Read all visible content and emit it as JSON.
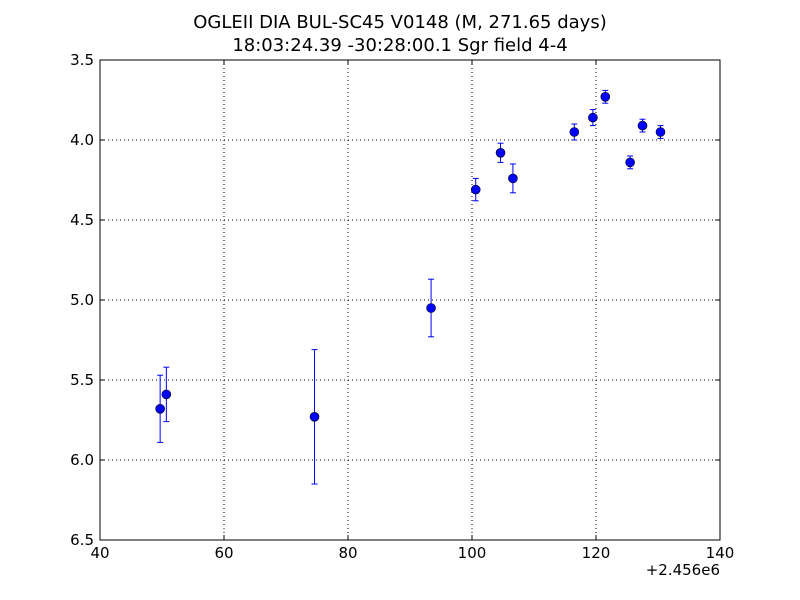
{
  "chart_data": {
    "type": "scatter",
    "title_lines": [
      "OGLEII DIA BUL-SC45 V0148  (M, 271.65 days)",
      "18:03:24.39 -30:28:00.1 Sgr field 4-4"
    ],
    "xlabel": "",
    "ylabel": "",
    "x_offset_label": "+2.456e6",
    "xlim": [
      40,
      140
    ],
    "ylim": [
      6.5,
      3.5
    ],
    "y_inverted": true,
    "grid": true,
    "x_ticks": [
      40,
      60,
      80,
      100,
      120,
      140
    ],
    "x_tick_labels": [
      "40",
      "60",
      "80",
      "100",
      "120",
      "140"
    ],
    "y_ticks": [
      3.5,
      4.0,
      4.5,
      5.0,
      5.5,
      6.0,
      6.5
    ],
    "y_tick_labels": [
      "3.5",
      "4.0",
      "4.5",
      "5.0",
      "5.5",
      "6.0",
      "6.5"
    ],
    "marker_color": "#0000ff",
    "points": [
      {
        "x": 49.7,
        "y": 5.68,
        "err": 0.21
      },
      {
        "x": 50.7,
        "y": 5.59,
        "err": 0.17
      },
      {
        "x": 74.6,
        "y": 5.73,
        "err": 0.42
      },
      {
        "x": 93.4,
        "y": 5.05,
        "err": 0.18
      },
      {
        "x": 100.6,
        "y": 4.31,
        "err": 0.07
      },
      {
        "x": 104.6,
        "y": 4.08,
        "err": 0.06
      },
      {
        "x": 106.6,
        "y": 4.24,
        "err": 0.09
      },
      {
        "x": 116.5,
        "y": 3.95,
        "err": 0.05
      },
      {
        "x": 119.5,
        "y": 3.86,
        "err": 0.05
      },
      {
        "x": 121.5,
        "y": 3.73,
        "err": 0.04
      },
      {
        "x": 125.5,
        "y": 4.14,
        "err": 0.04
      },
      {
        "x": 127.5,
        "y": 3.91,
        "err": 0.04
      },
      {
        "x": 130.4,
        "y": 3.95,
        "err": 0.04
      }
    ]
  }
}
